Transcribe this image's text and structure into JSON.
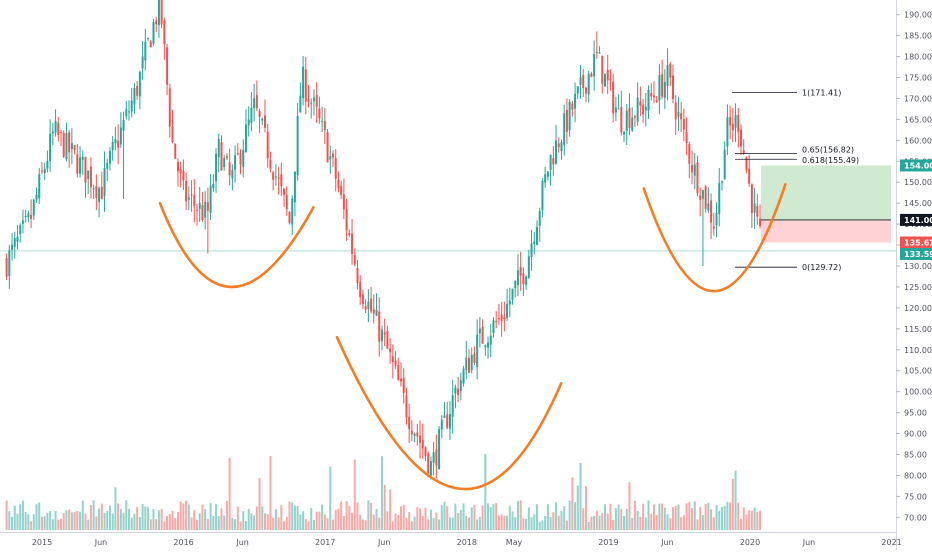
{
  "chart_data": {
    "type": "candlestick",
    "x_axis": {
      "labels": [
        "2015",
        "Jun",
        "2016",
        "Jun",
        "2017",
        "Jun",
        "2018",
        "May",
        "2019",
        "Jun",
        "2020",
        "Jun",
        "2021"
      ]
    },
    "y_axis": {
      "ticks": [
        "70.00",
        "75.00",
        "80.00",
        "85.00",
        "90.00",
        "95.00",
        "100.00",
        "105.00",
        "110.00",
        "115.00",
        "120.00",
        "125.00",
        "130.00",
        "135.00",
        "140.00",
        "145.00",
        "150.00",
        "155.00",
        "160.00",
        "165.00",
        "170.00",
        "175.00",
        "180.00",
        "185.00",
        "190.00"
      ],
      "range": [
        66.5,
        193.5
      ]
    },
    "price_tags": [
      {
        "label": "154.00",
        "value": 154.0,
        "color": "#26a69a"
      },
      {
        "label": "141.00",
        "value": 141.0,
        "color": "#131722"
      },
      {
        "label": "135.61",
        "value": 135.61,
        "color": "#ef5350"
      },
      {
        "label": "133.59",
        "value": 133.59,
        "color": "#26a69a"
      }
    ],
    "fibonacci": [
      {
        "label": "1(171.41)",
        "value": 171.41
      },
      {
        "label": "0.65(156.82)",
        "value": 156.82
      },
      {
        "label": "0.618(155.49)",
        "value": 155.49
      },
      {
        "label": "0(129.72)",
        "value": 129.72
      }
    ],
    "position": {
      "target": 154.0,
      "entry": 141.0,
      "stop": 135.61
    },
    "reference_line": 133.59,
    "arcs": [
      {
        "name": "left-cup",
        "start": [
          "2015-11",
          145.0
        ],
        "bottom": [
          "2016-05",
          125.0
        ],
        "end": [
          "2016-12",
          144.0
        ]
      },
      {
        "name": "middle-cup",
        "start": [
          "2017-02",
          113.0
        ],
        "bottom": [
          "2017-12",
          77.0
        ],
        "end": [
          "2018-09",
          102.0
        ]
      },
      {
        "name": "right-cup",
        "start": [
          "2019-04",
          148.5
        ],
        "bottom": [
          "2019-10",
          124.0
        ],
        "end": [
          "2020-04",
          149.5
        ]
      }
    ],
    "price_path": [
      [
        "2014-10",
        131
      ],
      [
        "2014-12",
        141
      ],
      [
        "2015-02",
        162
      ],
      [
        "2015-04",
        155
      ],
      [
        "2015-06",
        148
      ],
      [
        "2015-07",
        157
      ],
      [
        "2015-09",
        172
      ],
      [
        "2015-10",
        183
      ],
      [
        "2015-11",
        193
      ],
      [
        "2015-12",
        160
      ],
      [
        "2016-01",
        147
      ],
      [
        "2016-03",
        142
      ],
      [
        "2016-04",
        158
      ],
      [
        "2016-05",
        150
      ],
      [
        "2016-07",
        168
      ],
      [
        "2016-09",
        150
      ],
      [
        "2016-10",
        140
      ],
      [
        "2016-11",
        175
      ],
      [
        "2016-12",
        168
      ],
      [
        "2017-01",
        160
      ],
      [
        "2017-02",
        150
      ],
      [
        "2017-04",
        125
      ],
      [
        "2017-06",
        112
      ],
      [
        "2017-08",
        95
      ],
      [
        "2017-10",
        82
      ],
      [
        "2017-12",
        100
      ],
      [
        "2018-02",
        112
      ],
      [
        "2018-04",
        118
      ],
      [
        "2018-06",
        130
      ],
      [
        "2018-08",
        155
      ],
      [
        "2018-10",
        168
      ],
      [
        "2018-12",
        180
      ],
      [
        "2019-02",
        165
      ],
      [
        "2019-04",
        168
      ],
      [
        "2019-06",
        175
      ],
      [
        "2019-08",
        155
      ],
      [
        "2019-10",
        140
      ],
      [
        "2019-11",
        162
      ],
      [
        "2019-12",
        165
      ],
      [
        "2020-01",
        148
      ],
      [
        "2020-02",
        134
      ]
    ],
    "volume": {
      "visible": true,
      "color_up": "#26a69a",
      "color_down": "#ef5350"
    },
    "grid": false
  }
}
